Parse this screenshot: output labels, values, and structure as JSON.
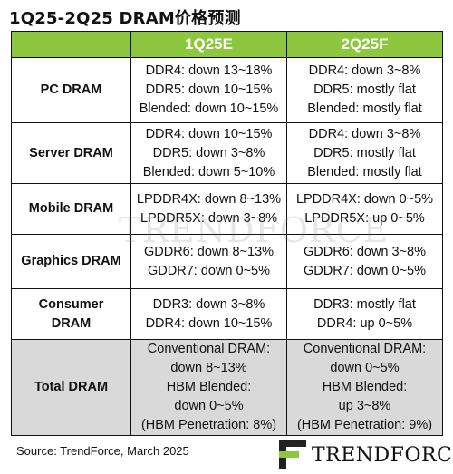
{
  "title": "1Q25-2Q25 DRAM价格预测",
  "columns": [
    "1Q25E",
    "2Q25F"
  ],
  "rows": [
    {
      "label": [
        "PC DRAM"
      ],
      "q1": [
        "DDR4: down 13~18%",
        "DDR5: down 10~15%",
        "Blended: down 10~15%"
      ],
      "q2": [
        "DDR4: down 3~8%",
        "DDR5: mostly flat",
        "Blended: mostly flat"
      ]
    },
    {
      "label": [
        "Server DRAM"
      ],
      "q1": [
        "DDR4: down 10~15%",
        "DDR5: down 3~8%",
        "Blended: down 5~10%"
      ],
      "q2": [
        "DDR4: down 3~8%",
        "DDR5: mostly flat",
        "Blended: mostly flat"
      ]
    },
    {
      "label": [
        "Mobile DRAM"
      ],
      "q1": [
        "LPDDR4X: down 8~13%",
        "LPDDR5X: down 3~8%"
      ],
      "q2": [
        "LPDDR4X: down 0~5%",
        "LPDDR5X: up 0~5%"
      ]
    },
    {
      "label": [
        "Graphics DRAM"
      ],
      "q1": [
        "GDDR6: down 8~13%",
        "GDDR7: down 0~5%"
      ],
      "q2": [
        "GDDR6: down 3~8%",
        "GDDR7: down 0~5%"
      ]
    },
    {
      "label": [
        "Consumer",
        "DRAM"
      ],
      "q1": [
        "DDR3: down 3~8%",
        "DDR4: down 10~15%"
      ],
      "q2": [
        "DDR3: mostly flat",
        "DDR4: up 0~5%"
      ]
    },
    {
      "label": [
        "Total DRAM"
      ],
      "q1": [
        "Conventional DRAM:",
        "down 8~13%",
        "HBM Blended:",
        "down 0~5%",
        "(HBM Penetration: 8%)"
      ],
      "q2": [
        "Conventional DRAM:",
        "down 0~5%",
        "HBM Blended:",
        "up 3~8%",
        "(HBM Penetration: 9%)"
      ]
    }
  ],
  "source": "Source: TrendForce, March 2025",
  "logo_text": "TRENDFORCE",
  "colors": {
    "header_green": "#8dc63f",
    "total_row_gray": "#d9d9d9",
    "border": "#111111"
  }
}
